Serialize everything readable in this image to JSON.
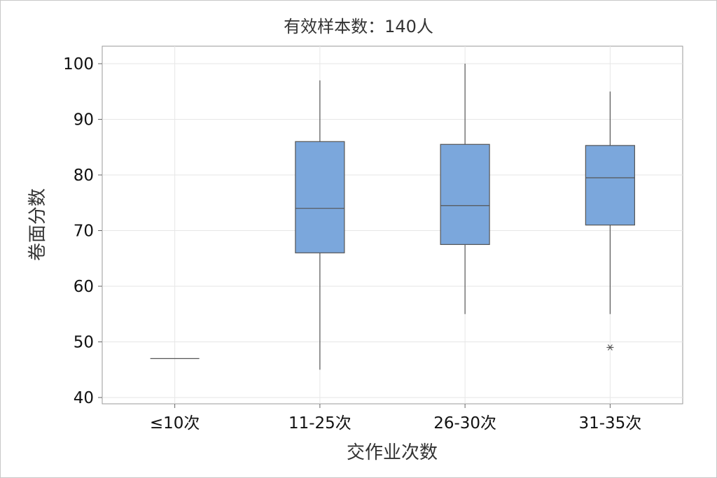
{
  "chart_data": {
    "type": "boxplot",
    "title": "有效样本数：140人",
    "xlabel": "交作业次数",
    "ylabel": "卷面分数",
    "ylim": [
      39,
      103
    ],
    "yticks": [
      40,
      50,
      60,
      70,
      80,
      90,
      100
    ],
    "grid": true,
    "categories": [
      "≤10次",
      "11-25次",
      "26-30次",
      "31-35次"
    ],
    "boxes": [
      {
        "category": "≤10次",
        "min": 47,
        "q1": 47,
        "median": 47,
        "q3": 47,
        "max": 47,
        "outliers": []
      },
      {
        "category": "11-25次",
        "min": 45,
        "q1": 66,
        "median": 74,
        "q3": 86,
        "max": 97,
        "outliers": []
      },
      {
        "category": "26-30次",
        "min": 55,
        "q1": 67.5,
        "median": 74.5,
        "q3": 85.5,
        "max": 100,
        "outliers": []
      },
      {
        "category": "31-35次",
        "min": 55,
        "q1": 71,
        "median": 79.5,
        "q3": 85.3,
        "max": 95,
        "outliers": [
          49
        ]
      }
    ],
    "colors": {
      "box_fill": "#7ba7dc",
      "box_stroke": "#555555",
      "grid": "#e6e6e6",
      "frame": "#999999"
    }
  }
}
